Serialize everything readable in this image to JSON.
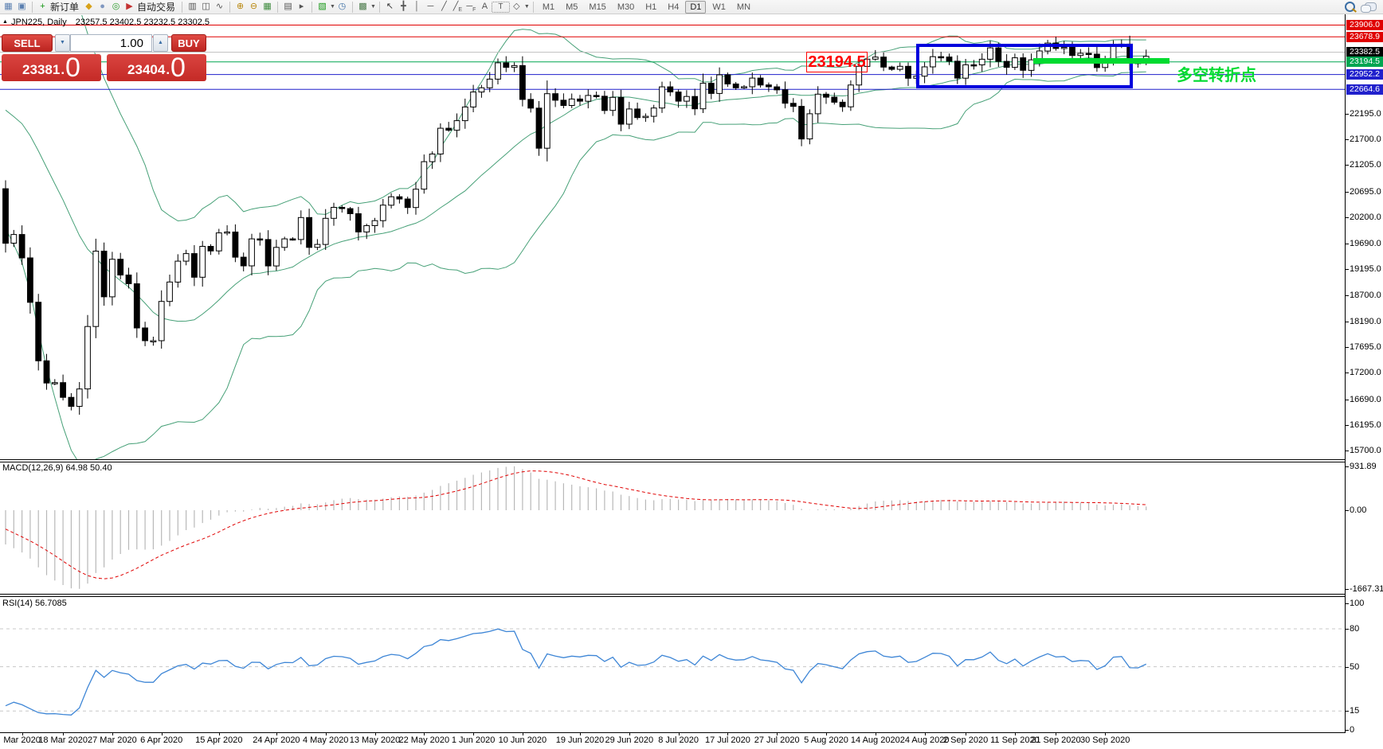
{
  "toolbar": {
    "groups": [
      [
        {
          "name": "market-watch-icon",
          "glyph": "▦",
          "color": "#5a7fb0"
        },
        {
          "name": "data-window-icon",
          "glyph": "▣",
          "color": "#5a7fb0"
        }
      ],
      [
        {
          "name": "new-order-icon",
          "glyph": "+",
          "color": "#149614",
          "label": "新订单"
        },
        {
          "name": "styler-icon",
          "glyph": "◆",
          "color": "#d8a21a"
        },
        {
          "name": "profile-icon",
          "glyph": "●",
          "color": "#8098c0"
        },
        {
          "name": "signal-icon",
          "glyph": "◎",
          "color": "#2a9a2a"
        },
        {
          "name": "autotrade-icon",
          "glyph": "▶",
          "color": "#c43232",
          "label": "自动交易"
        }
      ],
      [
        {
          "name": "bar-chart-icon",
          "glyph": "▥",
          "color": "#555"
        },
        {
          "name": "candlestick-chart-icon",
          "glyph": "◫",
          "color": "#555"
        },
        {
          "name": "line-chart-icon",
          "glyph": "∿",
          "color": "#555"
        }
      ],
      [
        {
          "name": "zoom-in-icon",
          "glyph": "⊕",
          "color": "#b8860b"
        },
        {
          "name": "zoom-out-icon",
          "glyph": "⊖",
          "color": "#b8860b"
        },
        {
          "name": "tile-windows-icon",
          "glyph": "▦",
          "color": "#3c8a3c"
        }
      ],
      [
        {
          "name": "auto-arrange-icon",
          "glyph": "▤",
          "color": "#555"
        },
        {
          "name": "chart-shift-icon",
          "glyph": "▸",
          "color": "#555"
        }
      ],
      [
        {
          "name": "new-template-icon",
          "glyph": "▧",
          "color": "#149614",
          "caret": true
        },
        {
          "name": "clock-icon",
          "glyph": "◷",
          "color": "#3a6ea5"
        }
      ],
      [
        {
          "name": "indicators-icon",
          "glyph": "▩",
          "color": "#4a7a4a",
          "caret": true
        }
      ],
      [
        {
          "name": "cursor-icon",
          "glyph": "↖",
          "color": "#333"
        },
        {
          "name": "crosshair-icon",
          "glyph": "╋",
          "color": "#555"
        },
        {
          "name": "vertical-line-icon",
          "glyph": "│",
          "color": "#555"
        },
        {
          "name": "horizontal-line-icon",
          "glyph": "─",
          "color": "#555"
        },
        {
          "name": "trendline-icon",
          "glyph": "╱",
          "color": "#555"
        },
        {
          "name": "equidistant-channel-icon",
          "glyph": "╱",
          "sub": "E",
          "color": "#555"
        },
        {
          "name": "fibonacci-icon",
          "glyph": "─",
          "sub": "F",
          "color": "#555"
        },
        {
          "name": "text-icon",
          "glyph": "A",
          "color": "#555"
        },
        {
          "name": "label-icon",
          "glyph": "T",
          "color": "#555",
          "boxed": true
        },
        {
          "name": "arrows-icon",
          "glyph": "◇",
          "color": "#555",
          "caret": true
        }
      ]
    ],
    "timeframes": [
      "M1",
      "M5",
      "M15",
      "M30",
      "H1",
      "H4",
      "D1",
      "W1",
      "MN"
    ],
    "active_timeframe": "D1",
    "new_order_label": "新订单",
    "autotrade_label": "自动交易"
  },
  "chart": {
    "window_title": "JPN225, Daily",
    "ohlc": "23257.5 23402.5 23232.5 23302.5",
    "price_axis_ticks": [
      22195.0,
      21700.0,
      21205.0,
      20695.0,
      20200.0,
      19690.0,
      19195.0,
      18700.0,
      18190.0,
      17695.0,
      17200.0,
      16690.0,
      16195.0,
      15700.0
    ],
    "price_lines": [
      {
        "price": 23906.0,
        "label": "23906.0",
        "line_color": "#e00000",
        "badge_color": "#e00000"
      },
      {
        "price": 23678.9,
        "label": "23678.9",
        "line_color": "#e00000",
        "badge_color": "#e00000"
      },
      {
        "price": 23382.5,
        "label": "23382.5",
        "line_color": "#bfbfbf",
        "badge_color": "#000000",
        "role": "bid-price"
      },
      {
        "price": 23194.5,
        "label": "23194.5",
        "line_color": "#00a651",
        "badge_color": "#00a651"
      },
      {
        "price": 22952.2,
        "label": "22952.2",
        "line_color": "#2020cc",
        "badge_color": "#2020cc"
      },
      {
        "price": 22664.6,
        "label": "22664.6",
        "line_color": "#2020cc",
        "badge_color": "#2020cc"
      }
    ],
    "annotations": {
      "price_callout": {
        "text": "23194.5",
        "color": "#ff0000"
      },
      "consolidation_box": {
        "color": "#0202dd"
      },
      "level_bar": {
        "color": "#00db30"
      },
      "note_text": {
        "text": "多空转折点",
        "color": "#00db30"
      }
    },
    "dates": [
      {
        "label": "Mar 2020",
        "i": 2
      },
      {
        "label": "18 Mar 2020",
        "i": 7
      },
      {
        "label": "27 Mar 2020",
        "i": 13
      },
      {
        "label": "6 Apr 2020",
        "i": 19
      },
      {
        "label": "15 Apr 2020",
        "i": 26
      },
      {
        "label": "24 Apr 2020",
        "i": 33
      },
      {
        "label": "4 May 2020",
        "i": 39
      },
      {
        "label": "13 May 2020",
        "i": 45
      },
      {
        "label": "22 May 2020",
        "i": 51
      },
      {
        "label": "1 Jun 2020",
        "i": 57
      },
      {
        "label": "10 Jun 2020",
        "i": 63
      },
      {
        "label": "19 Jun 2020",
        "i": 70
      },
      {
        "label": "29 Jun 2020",
        "i": 76
      },
      {
        "label": "8 Jul 2020",
        "i": 82
      },
      {
        "label": "17 Jul 2020",
        "i": 88
      },
      {
        "label": "27 Jul 2020",
        "i": 94
      },
      {
        "label": "5 Aug 2020",
        "i": 100
      },
      {
        "label": "14 Aug 2020",
        "i": 106
      },
      {
        "label": "24 Aug 2020",
        "i": 112
      },
      {
        "label": "2 Sep 2020",
        "i": 117
      },
      {
        "label": "11 Sep 2020",
        "i": 123
      },
      {
        "label": "21 Sep 2020",
        "i": 128
      },
      {
        "label": "30 Sep 2020",
        "i": 134
      }
    ]
  },
  "indicators": {
    "macd": {
      "label": "MACD(12,26,9) 64.98 50.40",
      "ticks": [
        {
          "v": 931.89,
          "t": "931.89"
        },
        {
          "v": 0,
          "t": "0.00"
        },
        {
          "v": -1667.31,
          "t": "-1667.31"
        }
      ]
    },
    "rsi": {
      "label": "RSI(14) 56.7085",
      "ticks": [
        {
          "v": 100,
          "t": "100"
        },
        {
          "v": 80,
          "t": "80"
        },
        {
          "v": 50,
          "t": "50"
        },
        {
          "v": 15,
          "t": "15"
        },
        {
          "v": 0,
          "t": "0"
        }
      ],
      "levels": [
        80,
        50,
        15
      ]
    }
  },
  "trade_panel": {
    "sell_label": "SELL",
    "buy_label": "BUY",
    "volume": "1.00",
    "sell_price": {
      "main": "23381",
      "big": "0"
    },
    "buy_price": {
      "main": "23404",
      "big": "0"
    }
  },
  "chart_data": {
    "type": "candlestick",
    "symbol": "JPN225",
    "timeframe": "Daily",
    "price_range": {
      "min": 15700,
      "max": 23990
    },
    "pre_closes": [
      23205,
      23290,
      23386,
      23310,
      22950,
      23480,
      23690,
      23320,
      22780,
      22420,
      21950,
      21700,
      21344,
      21083,
      21100,
      21329,
      20750
    ],
    "closes": [
      19699,
      19867,
      19416,
      18560,
      17431,
      17002,
      17011,
      16727,
      16553,
      16888,
      18092,
      19546,
      18665,
      19389,
      19085,
      18917,
      18065,
      17819,
      17820,
      18576,
      18950,
      19353,
      19499,
      19043,
      19639,
      19550,
      19897,
      19914,
      19429,
      19262,
      19783,
      19771,
      19262,
      19619,
      19783,
      19771,
      20194,
      19619,
      19675,
      20179,
      20391,
      20366,
      20267,
      19915,
      20037,
      20134,
      20433,
      20595,
      20552,
      20388,
      20741,
      21271,
      21419,
      21916,
      21878,
      22062,
      22326,
      22614,
      22696,
      22864,
      23178,
      23091,
      23125,
      22472,
      22305,
      21531,
      22582,
      22456,
      22355,
      22479,
      22437,
      22549,
      22534,
      22260,
      22512,
      21995,
      22288,
      22122,
      22146,
      22306,
      22714,
      22615,
      22439,
      22529,
      22291,
      22784,
      22587,
      22946,
      22770,
      22696,
      22717,
      22884,
      22751,
      22715,
      22657,
      22397,
      22339,
      21710,
      22195,
      22573,
      22515,
      22418,
      22330,
      22750,
      23110,
      23249,
      23289,
      23096,
      23051,
      23110,
      22880,
      22920,
      23100,
      23296,
      23290,
      23208,
      22882,
      23140,
      23138,
      23247,
      23466,
      23205,
      23090,
      23274,
      23033,
      23235,
      23406,
      23559,
      23455,
      23476,
      23319,
      23360,
      23346,
      23087,
      23204,
      23512,
      23539,
      23185,
      23180,
      23302
    ],
    "bollinger": {
      "period": 20,
      "deviation": 2,
      "color": "#46a077"
    },
    "macd": {
      "fast": 12,
      "slow": 26,
      "signal": 9,
      "scale_max": 931.89,
      "scale_min": -1667.31,
      "bar_color": "#b8b8b8",
      "signal_color": "#e00000"
    },
    "rsi": {
      "period": 14,
      "color": "#3e86d6"
    }
  }
}
